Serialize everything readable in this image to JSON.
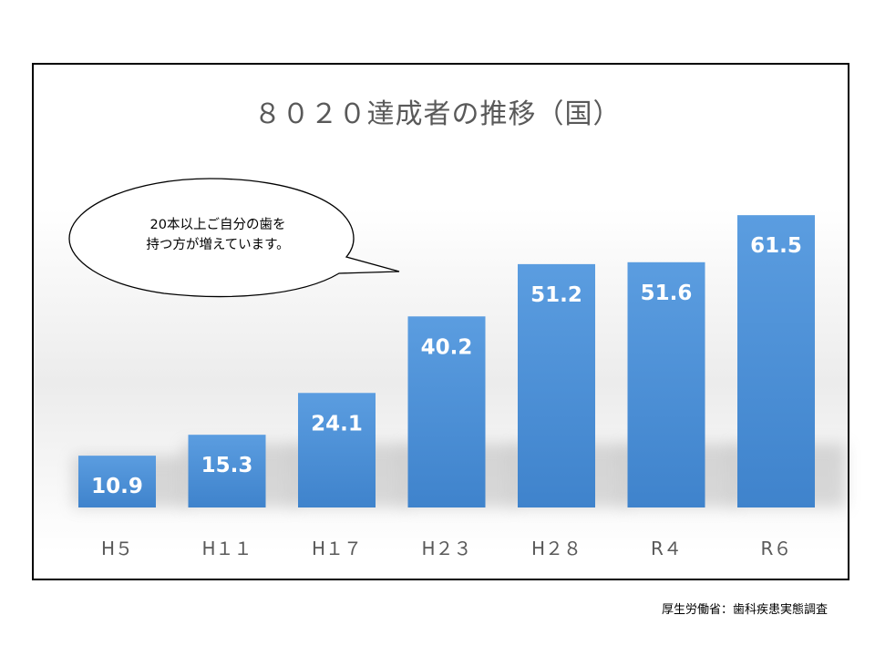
{
  "chart_data": {
    "type": "bar",
    "title": "８０２０達成者の推移（国）",
    "categories": [
      "H５",
      "H１１",
      "H１７",
      "H２３",
      "H２８",
      "R４",
      "R６"
    ],
    "values": [
      10.9,
      15.3,
      24.1,
      40.2,
      51.2,
      51.6,
      61.5
    ],
    "data_labels": [
      "10.9",
      "15.3",
      "24.1",
      "40.2",
      "51.2",
      "51.6",
      "61.5"
    ],
    "xlabel": "",
    "ylabel": "",
    "ylim": [
      0,
      70
    ],
    "grid": false,
    "bar_color": "#4f94d6",
    "annotation": "20本以上ご自分の歯を\n持つ方が増えています。"
  },
  "source": "厚生労働省：歯科疾患実態調査"
}
